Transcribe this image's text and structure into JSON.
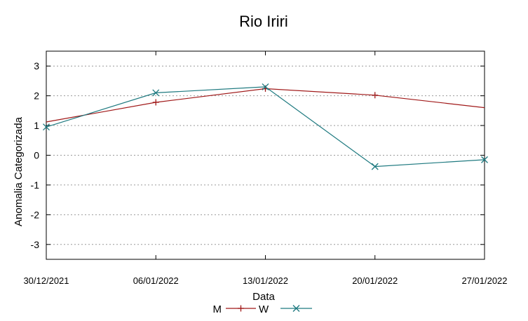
{
  "chart_data": {
    "type": "line",
    "title": "Rio Iriri",
    "xlabel": "Data",
    "ylabel": "Anomalia Categorizada",
    "categories": [
      "30/12/2021",
      "06/01/2022",
      "13/01/2022",
      "20/01/2022",
      "27/01/2022"
    ],
    "ylim": [
      -3.5,
      3.5
    ],
    "yticks": [
      "3",
      "2",
      "1",
      "0",
      "-1",
      "-2",
      "-3"
    ],
    "grid": true,
    "legend_position": "bottom-center",
    "series": [
      {
        "name": "M",
        "color": "#a01818",
        "marker": "plus",
        "x": [
          0,
          1,
          2,
          3,
          4
        ],
        "values": [
          1.12,
          1.78,
          2.24,
          2.02,
          1.6
        ],
        "marked": [
          false,
          true,
          true,
          true,
          false
        ]
      },
      {
        "name": "W",
        "color": "#1f7a80",
        "marker": "cross",
        "x": [
          0,
          1,
          2,
          3,
          4
        ],
        "values": [
          0.95,
          2.1,
          2.3,
          -0.38,
          -0.15
        ],
        "marked": [
          true,
          true,
          true,
          true,
          true
        ]
      }
    ]
  }
}
